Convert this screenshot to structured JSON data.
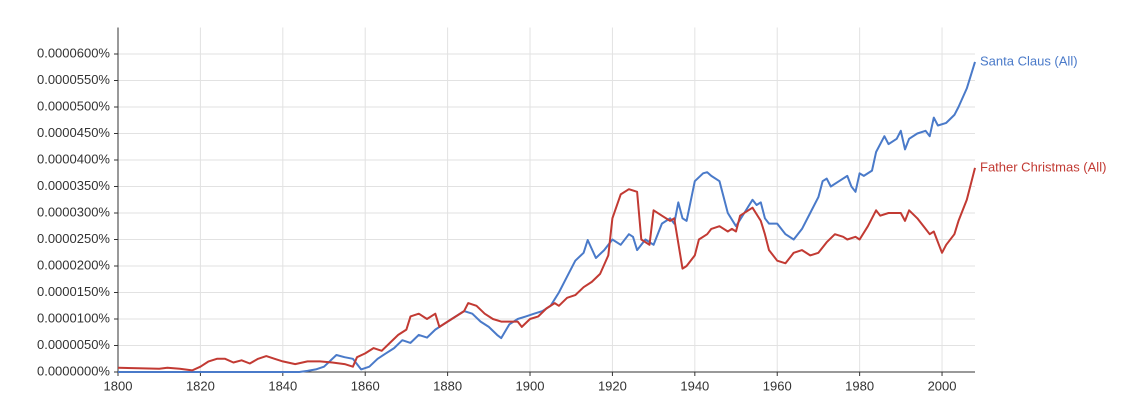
{
  "chart_data": {
    "type": "line",
    "xlim": [
      1800,
      2008
    ],
    "xticks": [
      1800,
      1820,
      1840,
      1860,
      1880,
      1900,
      1920,
      1940,
      1960,
      1980,
      2000
    ],
    "ylim": [
      0,
      6.5e-05
    ],
    "yticks": [
      {
        "value": 0,
        "label": "0.0000000%"
      },
      {
        "value": 5e-06,
        "label": "0.0000050%"
      },
      {
        "value": 1e-05,
        "label": "0.0000100%"
      },
      {
        "value": 1.5e-05,
        "label": "0.0000150%"
      },
      {
        "value": 2e-05,
        "label": "0.0000200%"
      },
      {
        "value": 2.5e-05,
        "label": "0.0000250%"
      },
      {
        "value": 3e-05,
        "label": "0.0000300%"
      },
      {
        "value": 3.5e-05,
        "label": "0.0000350%"
      },
      {
        "value": 4e-05,
        "label": "0.0000400%"
      },
      {
        "value": 4.5e-05,
        "label": "0.0000450%"
      },
      {
        "value": 5e-05,
        "label": "0.0000500%"
      },
      {
        "value": 5.5e-05,
        "label": "0.0000550%"
      },
      {
        "value": 6e-05,
        "label": "0.0000600%"
      }
    ],
    "grid": true,
    "series": [
      {
        "name": "Santa Claus (All)",
        "color": "#4a7ac9",
        "x": [
          1800,
          1844,
          1846,
          1848,
          1850,
          1853,
          1855,
          1857,
          1858,
          1859,
          1861,
          1863,
          1865,
          1867,
          1869,
          1871,
          1873,
          1875,
          1877,
          1879,
          1881,
          1884,
          1886,
          1888,
          1890,
          1892,
          1893,
          1895,
          1897,
          1899,
          1901,
          1903,
          1905,
          1907,
          1909,
          1911,
          1913,
          1914,
          1916,
          1918,
          1920,
          1922,
          1924,
          1925,
          1926,
          1928,
          1930,
          1932,
          1934,
          1935,
          1936,
          1937,
          1938,
          1940,
          1942,
          1943,
          1944,
          1946,
          1948,
          1950,
          1952,
          1954,
          1955,
          1956,
          1957,
          1958,
          1960,
          1962,
          1964,
          1966,
          1968,
          1970,
          1971,
          1972,
          1973,
          1975,
          1977,
          1978,
          1979,
          1980,
          1981,
          1983,
          1984,
          1986,
          1987,
          1989,
          1990,
          1991,
          1992,
          1994,
          1996,
          1997,
          1998,
          1999,
          2001,
          2003,
          2004,
          2006,
          2007,
          2008
        ],
        "values": [
          0,
          0,
          2e-07,
          5e-07,
          1e-06,
          3.2e-06,
          2.8e-06,
          2.5e-06,
          1.5e-06,
          5e-07,
          1e-06,
          2.5e-06,
          3.5e-06,
          4.5e-06,
          6e-06,
          5.5e-06,
          7e-06,
          6.5e-06,
          8e-06,
          9e-06,
          1e-05,
          1.15e-05,
          1.1e-05,
          9.5e-06,
          8.5e-06,
          7e-06,
          6.4e-06,
          9e-06,
          1e-05,
          1.05e-05,
          1.1e-05,
          1.15e-05,
          1.25e-05,
          1.5e-05,
          1.8e-05,
          2.1e-05,
          2.25e-05,
          2.49e-05,
          2.15e-05,
          2.3e-05,
          2.5e-05,
          2.4e-05,
          2.6e-05,
          2.55e-05,
          2.3e-05,
          2.5e-05,
          2.4e-05,
          2.8e-05,
          2.9e-05,
          2.8e-05,
          3.2e-05,
          2.9e-05,
          2.85e-05,
          3.6e-05,
          3.75e-05,
          3.77e-05,
          3.7e-05,
          3.6e-05,
          3e-05,
          2.75e-05,
          3e-05,
          3.25e-05,
          3.15e-05,
          3.2e-05,
          2.9e-05,
          2.8e-05,
          2.8e-05,
          2.6e-05,
          2.5e-05,
          2.7e-05,
          3e-05,
          3.3e-05,
          3.6e-05,
          3.65e-05,
          3.5e-05,
          3.6e-05,
          3.7e-05,
          3.5e-05,
          3.4e-05,
          3.75e-05,
          3.7e-05,
          3.8e-05,
          4.15e-05,
          4.45e-05,
          4.3e-05,
          4.4e-05,
          4.55e-05,
          4.2e-05,
          4.4e-05,
          4.5e-05,
          4.55e-05,
          4.45e-05,
          4.8e-05,
          4.65e-05,
          4.7e-05,
          4.85e-05,
          5e-05,
          5.35e-05,
          5.6e-05,
          5.85e-05
        ]
      },
      {
        "name": "Father Christmas (All)",
        "color": "#c23a33",
        "x": [
          1800,
          1805,
          1810,
          1812,
          1815,
          1818,
          1820,
          1822,
          1824,
          1826,
          1828,
          1830,
          1832,
          1834,
          1836,
          1838,
          1840,
          1843,
          1846,
          1849,
          1852,
          1855,
          1857,
          1858,
          1860,
          1862,
          1864,
          1866,
          1868,
          1870,
          1871,
          1873,
          1875,
          1877,
          1878,
          1880,
          1882,
          1884,
          1885,
          1887,
          1889,
          1891,
          1893,
          1895,
          1897,
          1898,
          1900,
          1902,
          1904,
          1906,
          1907,
          1909,
          1911,
          1913,
          1915,
          1917,
          1919,
          1920,
          1922,
          1924,
          1926,
          1927,
          1929,
          1930,
          1932,
          1934,
          1935,
          1937,
          1938,
          1940,
          1941,
          1943,
          1944,
          1946,
          1948,
          1949,
          1950,
          1951,
          1953,
          1954,
          1956,
          1957,
          1958,
          1960,
          1962,
          1964,
          1966,
          1968,
          1970,
          1972,
          1974,
          1976,
          1977,
          1979,
          1980,
          1982,
          1984,
          1985,
          1987,
          1990,
          1991,
          1992,
          1994,
          1996,
          1997,
          1998,
          2000,
          2001,
          2003,
          2004,
          2006,
          2008
        ],
        "values": [
          8e-07,
          7e-07,
          6e-07,
          8e-07,
          6e-07,
          3e-07,
          1e-06,
          2e-06,
          2.5e-06,
          2.5e-06,
          1.8e-06,
          2.2e-06,
          1.6e-06,
          2.5e-06,
          3e-06,
          2.5e-06,
          2e-06,
          1.5e-06,
          2e-06,
          2e-06,
          1.8e-06,
          1.5e-06,
          1e-06,
          2.8e-06,
          3.5e-06,
          4.5e-06,
          4e-06,
          5.5e-06,
          7e-06,
          8e-06,
          1.05e-05,
          1.1e-05,
          1e-05,
          1.1e-05,
          8.5e-06,
          9.5e-06,
          1.05e-05,
          1.15e-05,
          1.3e-05,
          1.25e-05,
          1.1e-05,
          1e-05,
          9.5e-06,
          9.5e-06,
          9.5e-06,
          8.5e-06,
          1e-05,
          1.05e-05,
          1.2e-05,
          1.3e-05,
          1.25e-05,
          1.4e-05,
          1.45e-05,
          1.6e-05,
          1.7e-05,
          1.85e-05,
          2.2e-05,
          2.9e-05,
          3.35e-05,
          3.45e-05,
          3.4e-05,
          2.5e-05,
          2.4e-05,
          3.05e-05,
          2.95e-05,
          2.85e-05,
          2.9e-05,
          1.95e-05,
          2e-05,
          2.2e-05,
          2.5e-05,
          2.6e-05,
          2.7e-05,
          2.75e-05,
          2.65e-05,
          2.7e-05,
          2.65e-05,
          2.95e-05,
          3.05e-05,
          3.1e-05,
          2.85e-05,
          2.6e-05,
          2.3e-05,
          2.1e-05,
          2.05e-05,
          2.25e-05,
          2.3e-05,
          2.2e-05,
          2.25e-05,
          2.45e-05,
          2.6e-05,
          2.55e-05,
          2.5e-05,
          2.55e-05,
          2.5e-05,
          2.75e-05,
          3.05e-05,
          2.95e-05,
          3e-05,
          3e-05,
          2.85e-05,
          3.05e-05,
          2.9e-05,
          2.7e-05,
          2.6e-05,
          2.65e-05,
          2.25e-05,
          2.4e-05,
          2.6e-05,
          2.85e-05,
          3.25e-05,
          3.85e-05
        ]
      }
    ]
  }
}
